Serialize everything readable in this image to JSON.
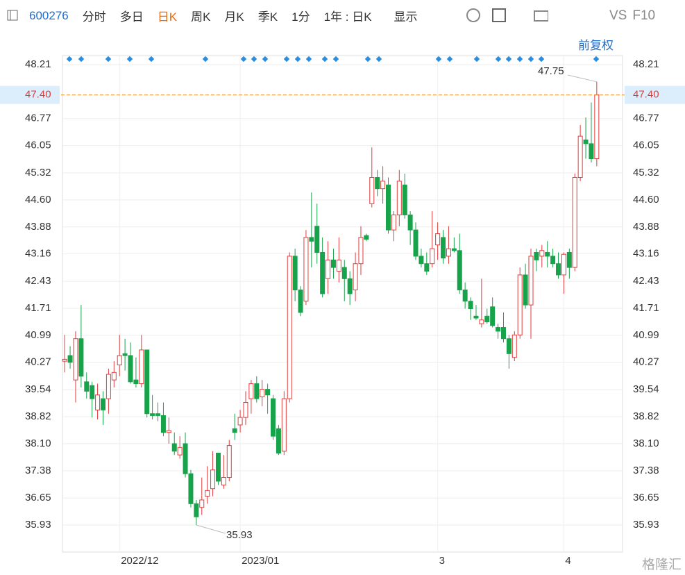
{
  "toolbar": {
    "ticker": "600276",
    "items": [
      "分时",
      "多日",
      "日K",
      "周K",
      "月K",
      "季K",
      "1分",
      "1年 : 日K",
      "显示"
    ],
    "active": 2,
    "right": [
      "VS",
      "F10"
    ],
    "adjust": "前复权"
  },
  "watermark": "格隆汇",
  "chart_data": {
    "type": "candlestick",
    "up_color": "#e23b3b",
    "down_color": "#16a34a",
    "ylim": [
      35.21,
      48.45
    ],
    "xlim": [
      -0.4,
      101.7
    ],
    "yticks": [
      48.21,
      46.77,
      46.05,
      45.32,
      {
        "value": 44.6,
        "label": "44.60"
      },
      43.88,
      43.16,
      42.43,
      41.71,
      40.99,
      40.27,
      39.54,
      38.82,
      {
        "value": 38.1,
        "label": "38.10"
      },
      37.38,
      36.65,
      35.93
    ],
    "xticks": [
      {
        "value": 10,
        "label": "2022/12"
      },
      {
        "value": 32,
        "label": "2023/01"
      },
      {
        "value": 68,
        "label": "3"
      },
      {
        "value": 91,
        "label": "4"
      }
    ],
    "price_line": {
      "value": 47.4,
      "label": "47.40",
      "color": "#f08a24"
    },
    "grid": true,
    "open": [
      40.3,
      40.45,
      39.8,
      40.9,
      39.75,
      39.65,
      39.0,
      39.3,
      39.3,
      39.8,
      40.2,
      40.5,
      40.45,
      39.8,
      39.7,
      40.6,
      38.9,
      38.9,
      38.85,
      38.4,
      38.1,
      37.8,
      38.1,
      37.3,
      36.5,
      36.4,
      36.7,
      36.9,
      37.85,
      37.0,
      37.2,
      38.5,
      38.6,
      38.8,
      39.3,
      39.7,
      39.35,
      39.55,
      39.3,
      38.5,
      37.9,
      39.3,
      43.1,
      42.2,
      41.9,
      43.6,
      43.9,
      43.2,
      42.5,
      43.0,
      42.7,
      42.8,
      42.5,
      42.2,
      42.9,
      43.65,
      44.5,
      45.2,
      44.9,
      45.0,
      43.8,
      44.2,
      45.0,
      44.2,
      43.8,
      43.1,
      42.9,
      42.9,
      43.4,
      43.6,
      43.1,
      43.3,
      43.25,
      42.2,
      41.9,
      41.5,
      41.3,
      41.5,
      41.75,
      41.2,
      41.2,
      40.9,
      40.4,
      41.0,
      42.6,
      41.8,
      43.2,
      43.1,
      43.2,
      43.1,
      42.9,
      42.6,
      43.2,
      42.8,
      45.2,
      46.2,
      46.1,
      45.7
    ],
    "high": [
      41.0,
      40.7,
      41.1,
      41.8,
      40.0,
      39.75,
      39.7,
      39.5,
      40.1,
      40.3,
      41.0,
      40.9,
      40.8,
      40.4,
      41.0,
      40.6,
      39.4,
      39.2,
      39.2,
      38.8,
      38.4,
      38.3,
      38.4,
      37.4,
      36.6,
      37.2,
      37.5,
      37.9,
      37.85,
      37.8,
      38.2,
      38.9,
      39.0,
      39.5,
      39.8,
      39.9,
      39.8,
      39.7,
      39.4,
      38.6,
      39.5,
      43.2,
      43.3,
      42.3,
      43.8,
      44.8,
      44.5,
      43.6,
      43.5,
      43.3,
      43.6,
      43.0,
      42.7,
      43.2,
      43.9,
      43.7,
      46.0,
      45.4,
      45.5,
      45.2,
      44.3,
      45.4,
      45.3,
      44.3,
      44.0,
      43.3,
      43.2,
      44.3,
      44.0,
      43.8,
      43.9,
      43.6,
      43.7,
      42.4,
      42.0,
      41.8,
      42.5,
      41.7,
      42.0,
      41.3,
      41.6,
      41.0,
      41.1,
      42.8,
      42.9,
      43.3,
      43.3,
      43.4,
      43.5,
      43.3,
      43.2,
      43.2,
      43.3,
      45.3,
      46.6,
      46.8,
      47.2,
      47.75
    ],
    "low": [
      40.0,
      40.1,
      39.2,
      39.6,
      39.3,
      38.8,
      38.75,
      38.6,
      38.9,
      39.6,
      39.9,
      40.05,
      39.7,
      39.6,
      39.6,
      38.8,
      38.75,
      38.7,
      38.3,
      38.1,
      37.8,
      37.7,
      37.2,
      36.4,
      35.93,
      36.2,
      36.5,
      36.7,
      37.0,
      36.9,
      37.1,
      38.2,
      38.4,
      38.6,
      38.9,
      39.2,
      39.1,
      38.9,
      38.2,
      37.8,
      37.8,
      39.2,
      41.9,
      41.5,
      41.8,
      42.8,
      42.9,
      42.0,
      42.1,
      42.5,
      42.4,
      41.9,
      41.8,
      41.9,
      42.6,
      43.5,
      44.4,
      44.7,
      44.5,
      43.7,
      43.5,
      43.9,
      44.1,
      43.4,
      43.0,
      42.8,
      42.6,
      42.8,
      43.0,
      42.9,
      42.9,
      43.2,
      42.1,
      41.7,
      41.4,
      41.4,
      41.2,
      41.3,
      41.2,
      40.9,
      40.8,
      40.1,
      40.3,
      40.9,
      41.7,
      40.9,
      42.7,
      42.8,
      42.8,
      42.8,
      42.5,
      42.1,
      42.5,
      42.7,
      45.1,
      45.7,
      45.6,
      45.5
    ],
    "close": [
      40.35,
      40.27,
      40.9,
      39.9,
      39.5,
      39.3,
      39.4,
      39.0,
      39.95,
      40.0,
      40.45,
      40.45,
      39.75,
      39.7,
      40.6,
      38.9,
      38.85,
      38.85,
      38.4,
      38.45,
      37.9,
      38.0,
      37.3,
      36.5,
      36.15,
      36.6,
      36.85,
      37.4,
      37.1,
      37.2,
      38.05,
      38.4,
      38.8,
      39.2,
      39.7,
      39.3,
      39.55,
      39.4,
      38.3,
      37.85,
      39.3,
      43.1,
      42.2,
      41.6,
      43.6,
      43.5,
      43.2,
      42.1,
      43.0,
      42.8,
      43.0,
      42.5,
      42.1,
      42.9,
      43.6,
      43.55,
      45.2,
      44.9,
      45.1,
      43.8,
      44.2,
      45.1,
      44.2,
      43.8,
      43.1,
      42.9,
      42.7,
      43.3,
      43.7,
      43.05,
      43.3,
      43.25,
      42.2,
      41.9,
      41.7,
      41.45,
      41.4,
      41.35,
      41.25,
      41.1,
      40.9,
      40.5,
      41.0,
      42.6,
      41.8,
      43.1,
      43.0,
      43.25,
      43.1,
      42.9,
      42.6,
      43.15,
      42.8,
      45.2,
      46.3,
      46.1,
      45.7,
      47.4
    ],
    "high_note": 97,
    "low_note": 24
  }
}
